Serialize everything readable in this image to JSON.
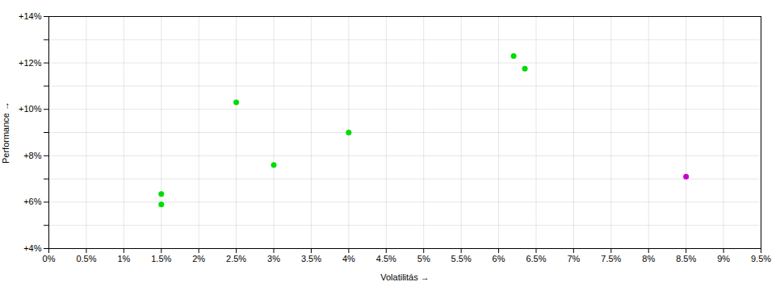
{
  "chart_data": {
    "type": "scatter",
    "xlabel": "Volatilitás",
    "ylabel": "Performance",
    "series": [
      {
        "color": "#00dd00",
        "marker": "circle",
        "x": [
          1.5,
          1.5,
          2.5,
          3.0,
          4.0,
          6.2,
          6.35
        ],
        "values": [
          6.35,
          5.9,
          10.3,
          7.6,
          9.0,
          12.3,
          11.75
        ]
      },
      {
        "color": "#cc00cc",
        "marker": "circle",
        "x": [
          8.5
        ],
        "values": [
          7.1
        ]
      }
    ],
    "xlim": [
      0,
      9.5
    ],
    "xticks": [
      {
        "value": 0,
        "label": "0%"
      },
      {
        "value": 0.5,
        "label": "0.5%"
      },
      {
        "value": 1.0,
        "label": "1%"
      },
      {
        "value": 1.5,
        "label": "1.5%"
      },
      {
        "value": 2.0,
        "label": "2%"
      },
      {
        "value": 2.5,
        "label": "2.5%"
      },
      {
        "value": 3.0,
        "label": "3%"
      },
      {
        "value": 3.5,
        "label": "3.5%"
      },
      {
        "value": 4.0,
        "label": "4%"
      },
      {
        "value": 4.5,
        "label": "4.5%"
      },
      {
        "value": 5.0,
        "label": "5%"
      },
      {
        "value": 5.5,
        "label": "5.5%"
      },
      {
        "value": 6.0,
        "label": "6%"
      },
      {
        "value": 6.5,
        "label": "6.5%"
      },
      {
        "value": 7.0,
        "label": "7%"
      },
      {
        "value": 7.5,
        "label": "7.5%"
      },
      {
        "value": 8.0,
        "label": "8%"
      },
      {
        "value": 8.5,
        "label": "8.5%"
      },
      {
        "value": 9.0,
        "label": "9%"
      },
      {
        "value": 9.5,
        "label": "9.5%"
      }
    ],
    "ylim": [
      4,
      14
    ],
    "yticks": [
      {
        "value": 4,
        "label": "+4%"
      },
      {
        "value": 5,
        "label": null
      },
      {
        "value": 6,
        "label": "+6%"
      },
      {
        "value": 7,
        "label": null
      },
      {
        "value": 8,
        "label": "+8%"
      },
      {
        "value": 9,
        "label": null
      },
      {
        "value": 10,
        "label": "+10%"
      },
      {
        "value": 11,
        "label": null
      },
      {
        "value": 12,
        "label": "+12%"
      },
      {
        "value": 13,
        "label": null
      },
      {
        "value": 14,
        "label": "+14%"
      }
    ],
    "grid": true
  }
}
